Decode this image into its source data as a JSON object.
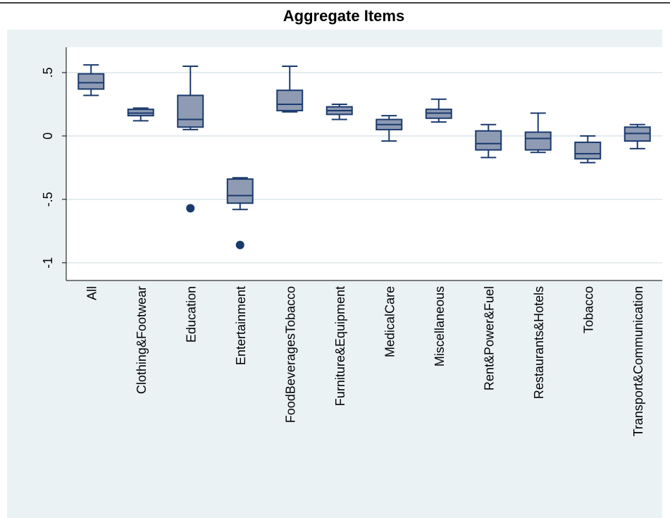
{
  "chart_data": {
    "type": "box",
    "title": "Aggregate Items",
    "categories": [
      "All",
      "Clothing&Footwear",
      "Education",
      "Entertainment",
      "FoodBeveragesTobacco",
      "Furniture&Equipment",
      "MedicalCare",
      "Miscellaneous",
      "Rent&Power&Fuel",
      "Restaurants&Hotels",
      "Tobacco",
      "Transport&Communication"
    ],
    "boxes": [
      {
        "whisker_low": 0.32,
        "q1": 0.37,
        "median": 0.42,
        "q3": 0.49,
        "whisker_high": 0.56,
        "outliers": []
      },
      {
        "whisker_low": 0.12,
        "q1": 0.16,
        "median": 0.18,
        "q3": 0.21,
        "whisker_high": 0.22,
        "outliers": []
      },
      {
        "whisker_low": 0.05,
        "q1": 0.07,
        "median": 0.13,
        "q3": 0.32,
        "whisker_high": 0.55,
        "outliers": [
          -0.57
        ]
      },
      {
        "whisker_low": -0.58,
        "q1": -0.53,
        "median": -0.47,
        "q3": -0.34,
        "whisker_high": -0.33,
        "outliers": [
          -0.86
        ]
      },
      {
        "whisker_low": 0.19,
        "q1": 0.2,
        "median": 0.25,
        "q3": 0.36,
        "whisker_high": 0.55,
        "outliers": []
      },
      {
        "whisker_low": 0.13,
        "q1": 0.17,
        "median": 0.2,
        "q3": 0.23,
        "whisker_high": 0.25,
        "outliers": []
      },
      {
        "whisker_low": -0.04,
        "q1": 0.05,
        "median": 0.09,
        "q3": 0.13,
        "whisker_high": 0.16,
        "outliers": []
      },
      {
        "whisker_low": 0.11,
        "q1": 0.14,
        "median": 0.18,
        "q3": 0.21,
        "whisker_high": 0.29,
        "outliers": []
      },
      {
        "whisker_low": -0.17,
        "q1": -0.11,
        "median": -0.06,
        "q3": 0.04,
        "whisker_high": 0.09,
        "outliers": []
      },
      {
        "whisker_low": -0.13,
        "q1": -0.11,
        "median": -0.02,
        "q3": 0.03,
        "whisker_high": 0.18,
        "outliers": []
      },
      {
        "whisker_low": -0.21,
        "q1": -0.18,
        "median": -0.14,
        "q3": -0.05,
        "whisker_high": 0,
        "outliers": []
      },
      {
        "whisker_low": -0.1,
        "q1": -0.04,
        "median": 0.02,
        "q3": 0.07,
        "whisker_high": 0.09,
        "outliers": []
      }
    ],
    "color": "#8e9bb3",
    "edge_color": "#1a3a6e",
    "ylim": [
      -1.14,
      0.7
    ],
    "yticks": [
      {
        "value": 0.5,
        "label": ".5"
      },
      0,
      {
        "value": -0.5,
        "label": "-.5"
      },
      -1
    ],
    "grid": true
  }
}
